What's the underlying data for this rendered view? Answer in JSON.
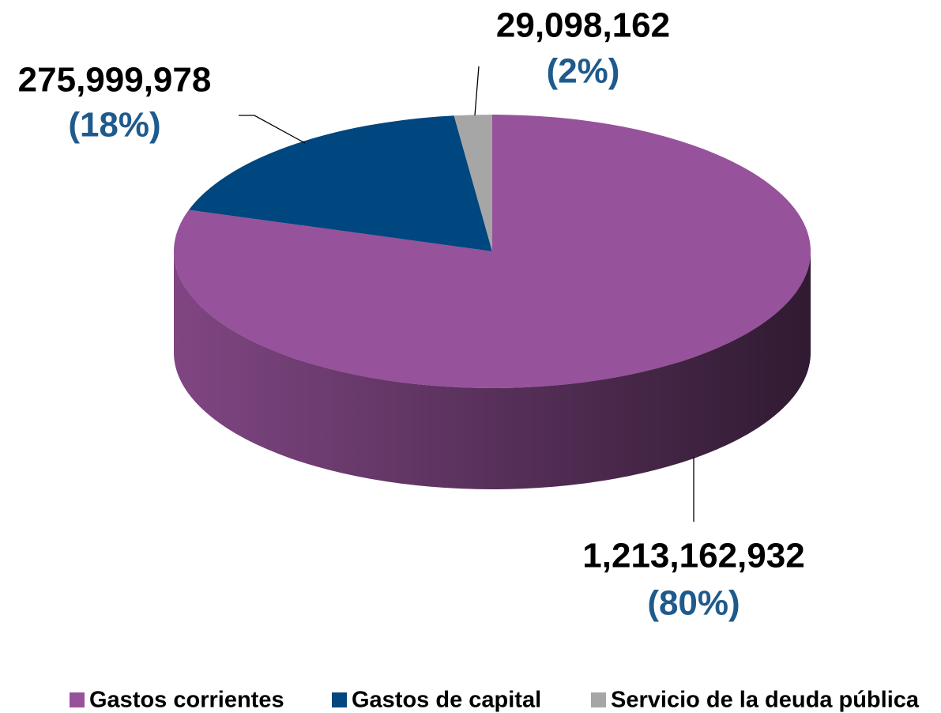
{
  "chart_data": {
    "type": "pie",
    "categories": [
      "Gastos corrientes",
      "Gastos de capital",
      "Servicio de la deuda pública"
    ],
    "values": [
      1213162932,
      275999978,
      29098162
    ],
    "value_labels": [
      "1,213,162,932",
      "275,999,978",
      "29,098,162"
    ],
    "percent_labels": [
      "(80%)",
      "(18%)",
      "(2%)"
    ],
    "colors": [
      "#96529a",
      "#00467f",
      "#a6a6a6"
    ],
    "legend": "bottom"
  }
}
